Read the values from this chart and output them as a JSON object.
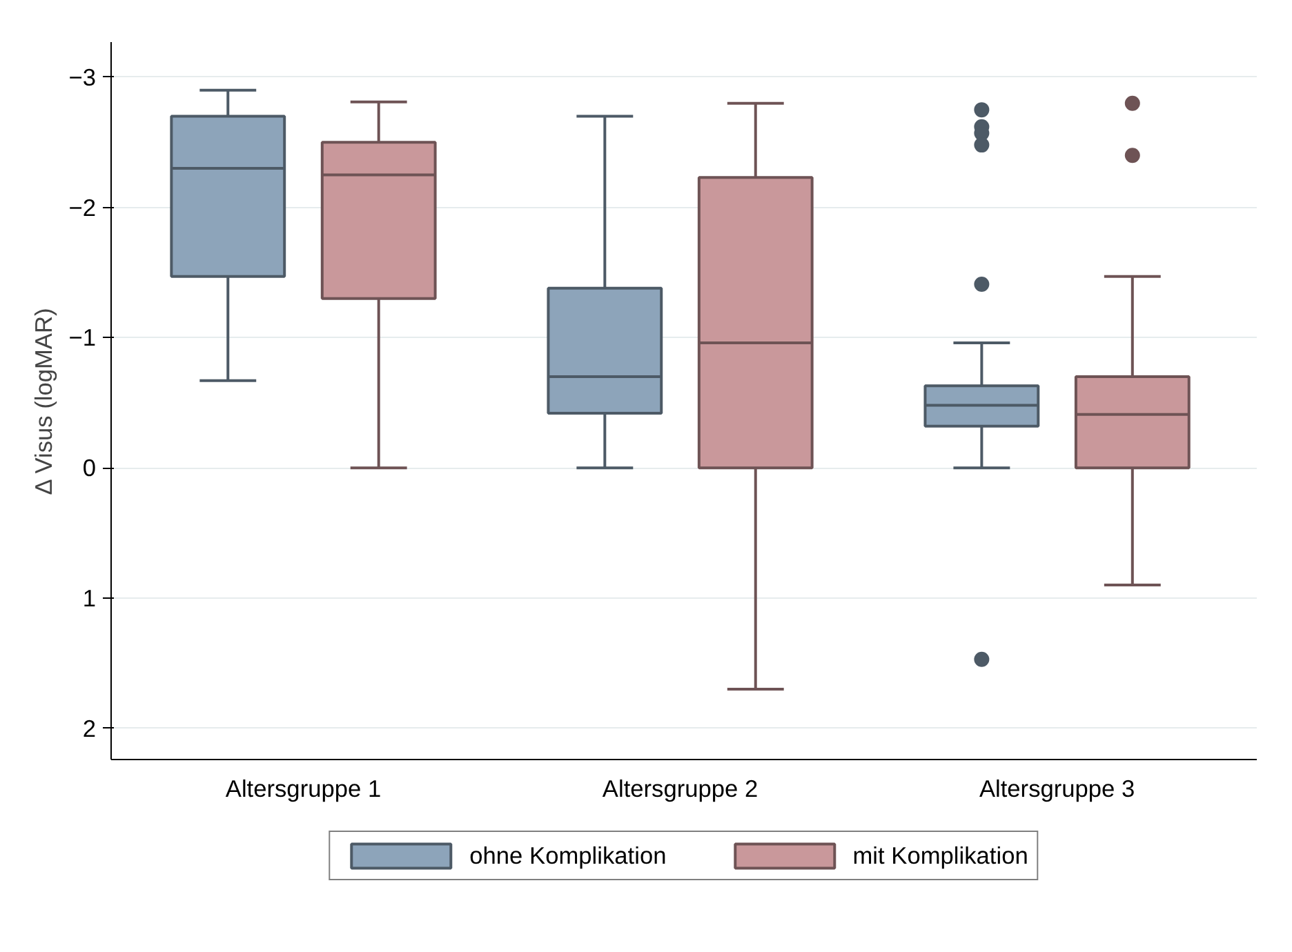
{
  "chart_data": {
    "type": "box",
    "ylabel": "Δ Visus (logMAR)",
    "categories": [
      "Altersgruppe 1",
      "Altersgruppe 2",
      "Altersgruppe 3"
    ],
    "ylim": [
      2.24,
      -3.27
    ],
    "yticks": [
      -3,
      -2,
      -1,
      0,
      1,
      2
    ],
    "grid": "y",
    "legend": "bottom",
    "series": [
      {
        "name": "ohne Komplikation",
        "color": "#8da4ba",
        "boxes": [
          {
            "low": -2.9,
            "q1": -2.7,
            "median": -2.3,
            "q3": -1.47,
            "high": -0.67
          },
          {
            "low": -2.7,
            "q1": -1.38,
            "median": -0.7,
            "q3": -0.42,
            "high": 0.0
          },
          {
            "low": -0.96,
            "q1": -0.63,
            "median": -0.48,
            "q3": -0.32,
            "high": 0.0,
            "outliers": [
              -2.75,
              -2.62,
              -2.57,
              -2.48,
              -1.41,
              1.47
            ]
          }
        ]
      },
      {
        "name": "mit Komplikation",
        "color": "#c9989b",
        "boxes": [
          {
            "low": -2.81,
            "q1": -2.5,
            "median": -2.25,
            "q3": -1.3,
            "high": 0.0
          },
          {
            "low": -2.8,
            "q1": -2.23,
            "median": -0.96,
            "q3": 0.0,
            "high": 1.7
          },
          {
            "low": -1.47,
            "q1": -0.7,
            "median": -0.41,
            "q3": 0.0,
            "high": 0.9,
            "outliers": [
              -2.8,
              -2.4
            ]
          }
        ]
      }
    ]
  }
}
